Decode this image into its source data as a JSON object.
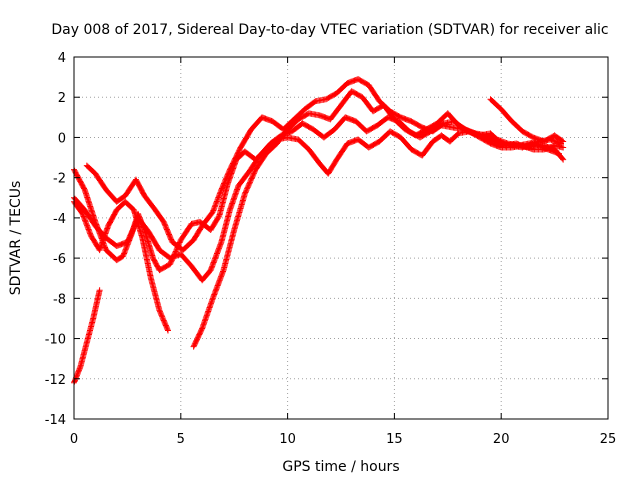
{
  "chart_data": {
    "type": "scatter",
    "title": "Day 008 of 2017, Sidereal Day-to-day VTEC variation (SDTVAR) for receiver alic",
    "xlabel": "GPS time / hours",
    "ylabel": "SDTVAR / TECUs",
    "xlim": [
      0,
      25
    ],
    "ylim": [
      -14,
      4
    ],
    "xticks": [
      0,
      5,
      10,
      15,
      20,
      25
    ],
    "yticks": [
      -14,
      -12,
      -10,
      -8,
      -6,
      -4,
      -2,
      0,
      2,
      4
    ],
    "grid": true,
    "marker": "+",
    "legend": "none",
    "colors": {
      "series": "#ff0000",
      "axis": "#000000",
      "grid": "#a0a0a0"
    },
    "series": [
      {
        "points": [
          [
            0.0,
            -1.6
          ],
          [
            0.5,
            -2.6
          ],
          [
            1.0,
            -4.2
          ],
          [
            1.5,
            -5.6
          ],
          [
            2.0,
            -6.1
          ],
          [
            2.3,
            -5.9
          ],
          [
            2.7,
            -4.8
          ],
          [
            3.0,
            -3.8
          ],
          [
            3.3,
            -4.6
          ],
          [
            3.7,
            -6.0
          ],
          [
            4.0,
            -6.6
          ],
          [
            4.5,
            -6.3
          ],
          [
            5.0,
            -5.1
          ],
          [
            5.5,
            -4.3
          ],
          [
            5.9,
            -4.2
          ],
          [
            6.4,
            -4.6
          ],
          [
            6.8,
            -3.9
          ],
          [
            7.2,
            -2.3
          ],
          [
            7.6,
            -1.1
          ],
          [
            8.0,
            -0.7
          ],
          [
            8.5,
            -1.1
          ],
          [
            9.0,
            -0.6
          ],
          [
            9.5,
            -0.1
          ],
          [
            10.0,
            0.0
          ],
          [
            10.5,
            -0.1
          ],
          [
            11.0,
            -0.6
          ],
          [
            11.5,
            -1.3
          ],
          [
            11.9,
            -1.8
          ],
          [
            12.3,
            -1.1
          ],
          [
            12.8,
            -0.3
          ],
          [
            13.3,
            -0.1
          ],
          [
            13.8,
            -0.5
          ],
          [
            14.3,
            -0.2
          ],
          [
            14.8,
            0.3
          ],
          [
            15.3,
            0.0
          ],
          [
            15.8,
            -0.6
          ],
          [
            16.3,
            -0.9
          ],
          [
            16.8,
            -0.2
          ],
          [
            17.2,
            0.1
          ],
          [
            17.6,
            -0.2
          ],
          [
            18.0,
            0.2
          ],
          [
            18.5,
            0.3
          ],
          [
            19.0,
            0.0
          ],
          [
            19.5,
            -0.3
          ],
          [
            20.0,
            -0.5
          ],
          [
            20.5,
            -0.5
          ],
          [
            21.0,
            -0.4
          ],
          [
            21.5,
            -0.6
          ],
          [
            22.0,
            -0.6
          ],
          [
            22.5,
            -0.4
          ],
          [
            22.9,
            -0.5
          ]
        ]
      },
      {
        "points": [
          [
            0.0,
            -3.0
          ],
          [
            0.5,
            -3.6
          ],
          [
            1.0,
            -4.4
          ],
          [
            1.5,
            -5.0
          ],
          [
            2.0,
            -5.4
          ],
          [
            2.5,
            -5.2
          ],
          [
            3.0,
            -4.0
          ],
          [
            3.5,
            -4.7
          ],
          [
            4.0,
            -5.6
          ],
          [
            4.5,
            -6.0
          ],
          [
            5.0,
            -5.8
          ],
          [
            5.5,
            -6.4
          ],
          [
            6.0,
            -7.1
          ],
          [
            6.4,
            -6.6
          ],
          [
            6.9,
            -5.2
          ],
          [
            7.3,
            -3.6
          ],
          [
            7.7,
            -2.4
          ],
          [
            8.2,
            -1.7
          ],
          [
            8.7,
            -0.9
          ],
          [
            9.2,
            -0.3
          ],
          [
            9.7,
            0.1
          ],
          [
            10.2,
            0.3
          ],
          [
            10.7,
            0.7
          ],
          [
            11.2,
            0.4
          ],
          [
            11.7,
            0.0
          ],
          [
            12.2,
            0.4
          ],
          [
            12.7,
            1.0
          ],
          [
            13.2,
            0.8
          ],
          [
            13.7,
            0.3
          ],
          [
            14.2,
            0.6
          ],
          [
            14.7,
            1.0
          ],
          [
            15.2,
            0.8
          ],
          [
            15.7,
            0.3
          ],
          [
            16.2,
            0.0
          ],
          [
            16.7,
            0.3
          ],
          [
            17.2,
            0.6
          ],
          [
            17.7,
            0.5
          ],
          [
            18.2,
            0.4
          ],
          [
            18.7,
            0.2
          ],
          [
            19.2,
            0.0
          ],
          [
            19.7,
            -0.2
          ],
          [
            20.2,
            -0.4
          ],
          [
            20.7,
            -0.3
          ],
          [
            21.2,
            -0.5
          ],
          [
            21.7,
            -0.4
          ],
          [
            22.2,
            -0.6
          ],
          [
            22.7,
            -0.8
          ]
        ]
      },
      {
        "points": [
          [
            0.6,
            -1.4
          ],
          [
            1.0,
            -1.8
          ],
          [
            1.5,
            -2.6
          ],
          [
            2.0,
            -3.2
          ],
          [
            2.4,
            -2.9
          ],
          [
            2.9,
            -2.1
          ],
          [
            3.3,
            -2.9
          ],
          [
            3.8,
            -3.6
          ],
          [
            4.2,
            -4.2
          ],
          [
            4.6,
            -5.2
          ],
          [
            5.1,
            -5.6
          ],
          [
            5.6,
            -5.1
          ],
          [
            6.0,
            -4.4
          ],
          [
            6.5,
            -3.7
          ],
          [
            6.9,
            -2.6
          ],
          [
            7.3,
            -1.6
          ],
          [
            7.8,
            -0.5
          ],
          [
            8.3,
            0.4
          ],
          [
            8.8,
            1.0
          ],
          [
            9.3,
            0.8
          ],
          [
            9.8,
            0.4
          ],
          [
            10.3,
            0.9
          ],
          [
            10.8,
            1.4
          ],
          [
            11.3,
            1.8
          ],
          [
            11.8,
            1.9
          ],
          [
            12.3,
            2.2
          ],
          [
            12.8,
            2.7
          ],
          [
            13.3,
            2.9
          ],
          [
            13.8,
            2.6
          ],
          [
            14.3,
            1.8
          ],
          [
            14.8,
            1.3
          ],
          [
            15.3,
            1.0
          ],
          [
            15.8,
            0.8
          ],
          [
            16.3,
            0.5
          ],
          [
            16.8,
            0.3
          ],
          [
            17.3,
            0.7
          ],
          [
            17.8,
            0.8
          ],
          [
            18.3,
            0.4
          ],
          [
            18.8,
            0.2
          ],
          [
            19.3,
            0.1
          ],
          [
            19.8,
            -0.1
          ],
          [
            20.3,
            -0.3
          ],
          [
            20.8,
            -0.4
          ],
          [
            21.3,
            -0.3
          ],
          [
            21.8,
            -0.2
          ],
          [
            22.3,
            -0.1
          ],
          [
            22.8,
            -0.3
          ]
        ]
      },
      {
        "points": [
          [
            0.0,
            -3.2
          ],
          [
            0.4,
            -3.8
          ],
          [
            0.8,
            -4.9
          ],
          [
            1.2,
            -5.6
          ],
          [
            1.6,
            -4.4
          ],
          [
            2.0,
            -3.6
          ],
          [
            2.4,
            -3.2
          ],
          [
            2.8,
            -3.6
          ],
          [
            3.2,
            -5.0
          ],
          [
            3.6,
            -7.0
          ],
          [
            4.0,
            -8.6
          ],
          [
            4.4,
            -9.6
          ]
        ]
      },
      {
        "points": [
          [
            0.0,
            -12.2
          ],
          [
            0.3,
            -11.4
          ],
          [
            0.6,
            -10.2
          ],
          [
            0.9,
            -9.0
          ],
          [
            1.2,
            -7.6
          ]
        ]
      },
      {
        "points": [
          [
            5.6,
            -10.4
          ],
          [
            6.0,
            -9.5
          ],
          [
            6.5,
            -8.0
          ],
          [
            7.0,
            -6.6
          ],
          [
            7.5,
            -4.6
          ],
          [
            8.0,
            -2.8
          ],
          [
            8.5,
            -1.6
          ],
          [
            9.0,
            -0.8
          ],
          [
            9.5,
            -0.3
          ],
          [
            10.0,
            0.4
          ],
          [
            10.5,
            0.9
          ],
          [
            11.0,
            1.2
          ],
          [
            11.5,
            1.1
          ],
          [
            12.0,
            0.9
          ],
          [
            12.5,
            1.6
          ],
          [
            13.0,
            2.3
          ],
          [
            13.5,
            2.0
          ],
          [
            14.0,
            1.3
          ],
          [
            14.5,
            1.6
          ],
          [
            15.0,
            0.9
          ],
          [
            15.5,
            0.4
          ],
          [
            16.0,
            0.1
          ],
          [
            16.5,
            0.4
          ],
          [
            17.0,
            0.7
          ],
          [
            17.5,
            1.2
          ],
          [
            18.0,
            0.6
          ],
          [
            18.5,
            0.3
          ],
          [
            19.0,
            0.1
          ],
          [
            19.5,
            0.2
          ],
          [
            20.0,
            -0.3
          ],
          [
            20.5,
            -0.4
          ],
          [
            21.0,
            -0.5
          ],
          [
            21.5,
            -0.3
          ],
          [
            22.0,
            -0.4
          ],
          [
            22.5,
            -0.6
          ],
          [
            22.9,
            -1.1
          ]
        ]
      },
      {
        "points": [
          [
            19.5,
            1.9
          ],
          [
            20.0,
            1.4
          ],
          [
            20.5,
            0.8
          ],
          [
            21.0,
            0.3
          ],
          [
            21.5,
            0.0
          ],
          [
            22.0,
            -0.2
          ],
          [
            22.5,
            0.1
          ],
          [
            22.9,
            -0.2
          ]
        ]
      }
    ]
  }
}
